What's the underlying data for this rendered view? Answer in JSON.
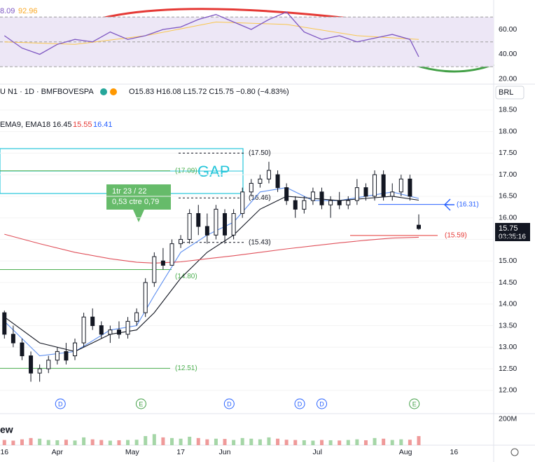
{
  "chart_data": {
    "type": "candlestick",
    "symbol_line": "U N1 · 1D · BMFBOVESPA",
    "ohlc_line": "O15.83 H16.08 L15.72 C15.75 −0.80 (−4.83%)",
    "indicator_line": "EMA9, EMA18",
    "indicator_values": [
      {
        "value": 16.45,
        "label": "16.45"
      },
      {
        "value": 15.55,
        "label": "15.55"
      },
      {
        "value": 16.41,
        "label": "16.41"
      }
    ],
    "currency": "BRL",
    "last_price": {
      "value": 15.75,
      "label": "15.75"
    },
    "countdown": "03:35:16",
    "rsi_header": [
      "8.09",
      "92.96"
    ],
    "volume_label": "ew",
    "gap_label": "GAP",
    "callout": [
      "1tr 23 / 22",
      "0,53 ctre 0,79"
    ],
    "xlim": [
      -1,
      111
    ],
    "xticks": [
      {
        "value": 0,
        "label": "16"
      },
      {
        "value": 12,
        "label": "Apr"
      },
      {
        "value": 29,
        "label": "May"
      },
      {
        "value": 40,
        "label": "17"
      },
      {
        "value": 50,
        "label": "Jun"
      },
      {
        "value": 71,
        "label": "Jul"
      },
      {
        "value": 91,
        "label": "Aug"
      },
      {
        "value": 102,
        "label": "16"
      }
    ],
    "ylim": [
      11.46,
      19.1
    ],
    "yticks": [
      {
        "value": 12,
        "label": "12.00"
      },
      {
        "value": 12.5,
        "label": "12.50"
      },
      {
        "value": 13,
        "label": "13.00"
      },
      {
        "value": 13.5,
        "label": "13.50"
      },
      {
        "value": 14,
        "label": "14.00"
      },
      {
        "value": 14.5,
        "label": "14.50"
      },
      {
        "value": 15,
        "label": "15.00"
      },
      {
        "value": 15.5,
        "label": "15.50"
      },
      {
        "value": 16,
        "label": "16.00"
      },
      {
        "value": 16.5,
        "label": "16.50"
      },
      {
        "value": 17,
        "label": "17.00"
      },
      {
        "value": 17.5,
        "label": "17.50"
      },
      {
        "value": 18,
        "label": "18.00"
      },
      {
        "value": 18.5,
        "label": "18.50"
      }
    ],
    "up_color": "#ffffff",
    "down_color": "#131722",
    "x": [
      0,
      2,
      4,
      6,
      8,
      10,
      12,
      14,
      16,
      18,
      20,
      22,
      24,
      26,
      28,
      30,
      32,
      34,
      36,
      38,
      40,
      42,
      44,
      46,
      48,
      50,
      52,
      54,
      56,
      58,
      60,
      62,
      64,
      66,
      68,
      70,
      72,
      74,
      76,
      78,
      80,
      82,
      84,
      86,
      88,
      90,
      92,
      94
    ],
    "open": [
      13.8,
      13.3,
      13.1,
      12.8,
      12.4,
      12.5,
      12.7,
      12.9,
      12.8,
      13.1,
      13.7,
      13.5,
      13.3,
      13.4,
      13.3,
      13.6,
      13.8,
      14.5,
      15.0,
      14.9,
      15.4,
      15.5,
      16.1,
      15.8,
      15.6,
      16.1,
      15.6,
      16.1,
      16.6,
      16.8,
      16.9,
      17.0,
      16.7,
      16.4,
      16.2,
      16.4,
      16.6,
      16.3,
      16.4,
      16.3,
      16.4,
      16.7,
      16.5,
      17.0,
      16.5,
      16.6,
      16.9,
      15.83
    ],
    "high": [
      13.85,
      13.5,
      13.2,
      12.9,
      12.6,
      12.8,
      13.0,
      13.1,
      13.2,
      13.8,
      13.9,
      13.6,
      13.5,
      13.6,
      13.7,
      13.9,
      14.6,
      15.2,
      15.3,
      15.5,
      15.6,
      16.2,
      16.3,
      16.1,
      16.3,
      16.2,
      16.2,
      16.7,
      16.9,
      17.0,
      17.3,
      17.1,
      16.8,
      16.5,
      16.5,
      16.7,
      16.7,
      16.5,
      16.6,
      16.5,
      16.9,
      16.8,
      17.1,
      17.1,
      16.8,
      17.0,
      17.0,
      16.08
    ],
    "low": [
      13.2,
      13.0,
      12.7,
      12.2,
      12.2,
      12.4,
      12.6,
      12.6,
      12.7,
      13.0,
      13.4,
      13.2,
      13.1,
      13.2,
      13.2,
      13.5,
      13.7,
      14.4,
      14.8,
      14.9,
      15.3,
      15.4,
      15.6,
      15.4,
      15.5,
      15.4,
      15.5,
      16.0,
      16.5,
      16.7,
      16.8,
      16.6,
      16.3,
      16.0,
      16.1,
      16.3,
      16.2,
      16.0,
      16.2,
      16.2,
      16.3,
      16.4,
      16.4,
      16.4,
      16.4,
      16.5,
      16.4,
      15.72
    ],
    "close": [
      13.3,
      13.1,
      12.8,
      12.4,
      12.5,
      12.7,
      12.9,
      12.7,
      13.1,
      13.7,
      13.5,
      13.3,
      13.4,
      13.3,
      13.6,
      13.8,
      14.5,
      15.1,
      14.9,
      15.4,
      15.5,
      16.1,
      15.8,
      15.6,
      16.2,
      15.6,
      16.1,
      16.6,
      16.8,
      16.9,
      17.1,
      16.7,
      16.4,
      16.2,
      16.4,
      16.6,
      16.3,
      16.4,
      16.3,
      16.4,
      16.7,
      16.5,
      17.0,
      16.5,
      16.6,
      16.9,
      16.5,
      15.75
    ],
    "lines": [
      {
        "name": "EMA9",
        "color": "#5b8def",
        "x": [
          0,
          8,
          16,
          24,
          30,
          34,
          40,
          46,
          52,
          58,
          64,
          70,
          76,
          82,
          88,
          94
        ],
        "values": [
          13.6,
          12.8,
          12.9,
          13.4,
          13.5,
          14.2,
          15.2,
          15.6,
          15.9,
          16.6,
          16.7,
          16.4,
          16.4,
          16.5,
          16.6,
          16.45
        ]
      },
      {
        "name": "EMA18",
        "color": "#131722",
        "x": [
          0,
          8,
          16,
          24,
          30,
          34,
          40,
          46,
          52,
          58,
          64,
          70,
          76,
          82,
          88,
          94
        ],
        "values": [
          13.7,
          13.1,
          12.9,
          13.3,
          13.4,
          13.8,
          14.6,
          15.2,
          15.6,
          16.2,
          16.5,
          16.45,
          16.4,
          16.45,
          16.5,
          16.41
        ]
      },
      {
        "name": "MA",
        "color": "#e0505a",
        "x": [
          0,
          8,
          16,
          24,
          30,
          34,
          40,
          46,
          52,
          58,
          64,
          70,
          76,
          82,
          88,
          94
        ],
        "values": [
          15.62,
          15.4,
          15.2,
          15.05,
          14.97,
          14.95,
          14.98,
          15.05,
          15.12,
          15.2,
          15.28,
          15.35,
          15.42,
          15.48,
          15.53,
          15.55
        ]
      }
    ],
    "levels": [
      {
        "value": 17.5,
        "label": "(17.50)",
        "color": "#131722"
      },
      {
        "value": 17.09,
        "label": "(17.09)",
        "color": "#4caf50"
      },
      {
        "value": 16.46,
        "label": "(16.46)",
        "color": "#131722"
      },
      {
        "value": 15.43,
        "label": "(15.43)",
        "color": "#131722"
      },
      {
        "value": 14.8,
        "label": "(14.80)",
        "color": "#4caf50"
      },
      {
        "value": 12.51,
        "label": "(12.51)",
        "color": "#4caf50"
      },
      {
        "value": 16.31,
        "label": "(16.31)",
        "color": "#2962ff"
      },
      {
        "value": 15.59,
        "label": "(15.59)",
        "color": "#e53935"
      }
    ],
    "events": [
      {
        "x": 12.7,
        "label": "D"
      },
      {
        "x": 31,
        "label": "E"
      },
      {
        "x": 51,
        "label": "D"
      },
      {
        "x": 67,
        "label": "D"
      },
      {
        "x": 72,
        "label": "D"
      },
      {
        "x": 93,
        "label": "E"
      }
    ],
    "volume": [
      40,
      35,
      45,
      55,
      50,
      40,
      38,
      42,
      36,
      60,
      45,
      40,
      35,
      38,
      40,
      42,
      70,
      85,
      60,
      55,
      50,
      65,
      55,
      45,
      50,
      48,
      40,
      55,
      50,
      45,
      60,
      50,
      42,
      40,
      38,
      35,
      40,
      38,
      36,
      40,
      45,
      38,
      55,
      50,
      40,
      45,
      42,
      70
    ],
    "volume_ylim": [
      0,
      243
    ],
    "volume_yticks": [
      {
        "value": 200,
        "label": "200M"
      }
    ],
    "rsi_x": [
      0,
      4,
      8,
      12,
      16,
      20,
      24,
      28,
      32,
      36,
      40,
      44,
      48,
      52,
      56,
      60,
      64,
      68,
      72,
      76,
      80,
      84,
      88,
      92,
      94
    ],
    "rsi": [
      55,
      45,
      40,
      48,
      52,
      50,
      58,
      52,
      55,
      60,
      62,
      68,
      72,
      66,
      60,
      68,
      74,
      58,
      52,
      55,
      50,
      53,
      56,
      52,
      38
    ],
    "rsi_signal_x": [
      0,
      16,
      32,
      48,
      64,
      80,
      94
    ],
    "rsi_signal": [
      50,
      48,
      55,
      66,
      64,
      55,
      52
    ],
    "rsi_ylim": [
      16,
      83.7
    ],
    "rsi_yticks": [
      {
        "value": 20,
        "label": "20.00"
      },
      {
        "value": 40,
        "label": "40.00"
      },
      {
        "value": 60,
        "label": "60.00"
      }
    ],
    "rsi_levels": [
      70,
      50,
      30
    ]
  }
}
